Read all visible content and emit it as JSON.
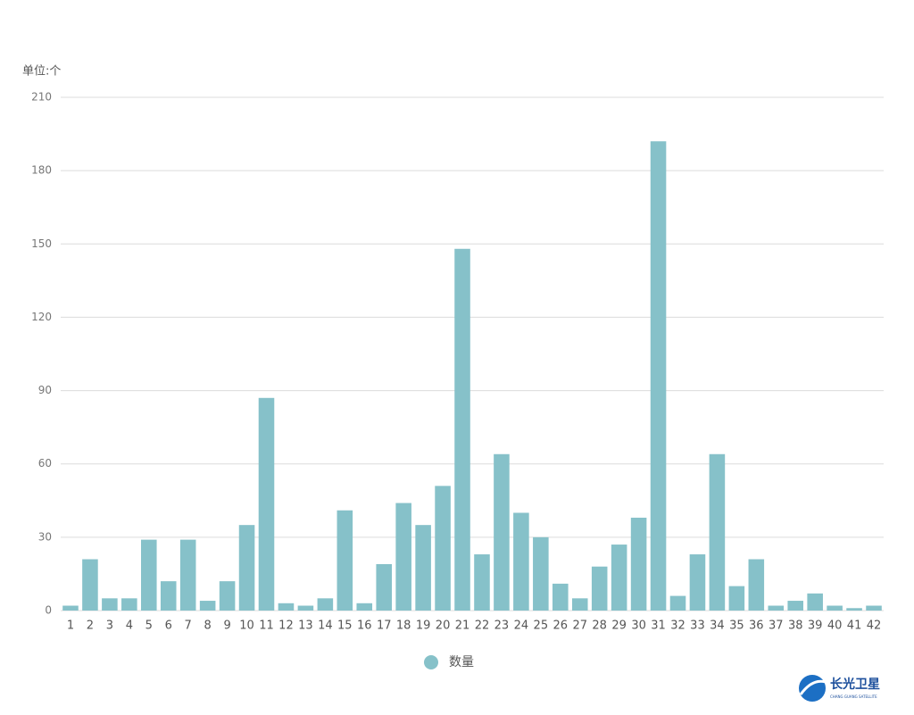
{
  "chart_data": {
    "type": "bar",
    "y_axis_label": "单位:个",
    "legend": "数量",
    "categories": [
      "1",
      "2",
      "3",
      "4",
      "5",
      "6",
      "7",
      "8",
      "9",
      "10",
      "11",
      "12",
      "13",
      "14",
      "15",
      "16",
      "17",
      "18",
      "19",
      "20",
      "21",
      "22",
      "23",
      "24",
      "25",
      "26",
      "27",
      "28",
      "29",
      "30",
      "31",
      "32",
      "33",
      "34",
      "35",
      "36",
      "37",
      "38",
      "39",
      "40",
      "41",
      "42"
    ],
    "values": [
      2,
      21,
      5,
      5,
      29,
      12,
      29,
      4,
      12,
      35,
      87,
      3,
      2,
      5,
      41,
      3,
      19,
      44,
      35,
      51,
      148,
      23,
      64,
      40,
      30,
      11,
      5,
      18,
      27,
      38,
      192,
      6,
      23,
      64,
      10,
      21,
      2,
      4,
      7,
      2,
      1,
      2
    ],
    "color": "#86c1c9",
    "ylim": [
      0,
      210
    ],
    "yticks": [
      0,
      30,
      60,
      90,
      120,
      150,
      180,
      210
    ],
    "grid": true
  },
  "logo": {
    "name": "长光卫星",
    "subtitle": "CHANG GUANG SATELLITE"
  }
}
